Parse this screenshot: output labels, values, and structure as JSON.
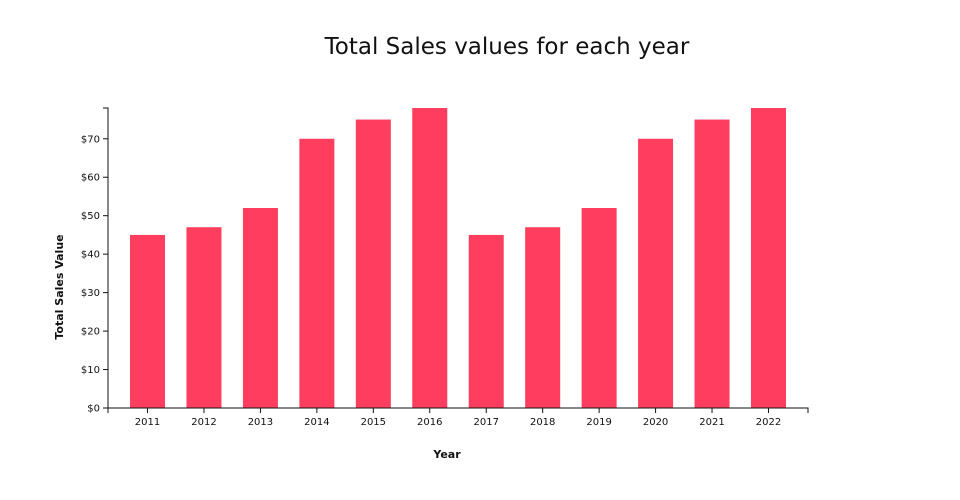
{
  "chart_data": {
    "type": "bar",
    "title": "Total Sales values for each year",
    "xlabel": "Year",
    "ylabel": "Total Sales Value",
    "categories": [
      "2011",
      "2012",
      "2013",
      "2014",
      "2015",
      "2016",
      "2017",
      "2018",
      "2019",
      "2020",
      "2021",
      "2022"
    ],
    "values": [
      45,
      47,
      52,
      70,
      75,
      78,
      45,
      47,
      52,
      70,
      75,
      78
    ],
    "ylim": [
      0,
      78
    ],
    "yticks": [
      0,
      10,
      20,
      30,
      40,
      50,
      60,
      70
    ],
    "ytick_labels": [
      "$0",
      "$10",
      "$20",
      "$30",
      "$40",
      "$50",
      "$60",
      "$70"
    ],
    "bar_color": "#ff3d5e",
    "grid": false,
    "legend": "none"
  }
}
